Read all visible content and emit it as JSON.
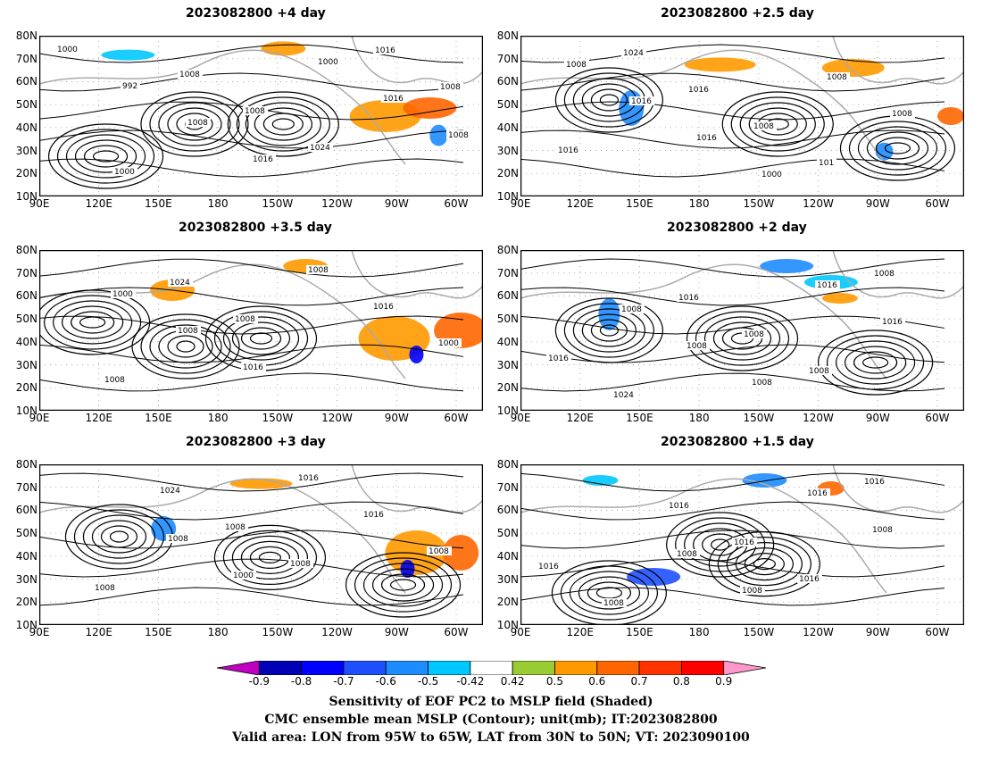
{
  "panels": [
    {
      "title": "2023082800  +4 day",
      "labels": [
        "1000",
        "992",
        "1008",
        "1016",
        "1000",
        "1016",
        "1008",
        "1000",
        "1008",
        "1008",
        "1024",
        "1016",
        "1008"
      ]
    },
    {
      "title": "2023082800  +2.5 day",
      "labels": [
        "1008",
        "1016",
        "1016",
        "1000",
        "1008",
        "1008",
        "1016",
        "1024",
        "1016",
        "1008",
        "101"
      ]
    },
    {
      "title": "2023082800  +3.5 day",
      "labels": [
        "1000",
        "1008",
        "1016",
        "1008",
        "1016",
        "1000",
        "1008",
        "1024",
        "1008"
      ]
    },
    {
      "title": "2023082800  +2 day",
      "labels": [
        "1008",
        "1008",
        "1008",
        "1016",
        "1016",
        "1016",
        "1024",
        "1016",
        "1008",
        "1008",
        "1008"
      ]
    },
    {
      "title": "2023082800  +3 day",
      "labels": [
        "1008",
        "1000",
        "1016",
        "1016",
        "1008",
        "1008",
        "1024",
        "1008",
        "1008"
      ]
    },
    {
      "title": "2023082800  +1.5 day",
      "labels": [
        "1008",
        "1008",
        "1016",
        "1008",
        "1016",
        "1008",
        "1016",
        "1016",
        "1016",
        "1016"
      ]
    }
  ],
  "axes": {
    "y_ticks": [
      "80N",
      "70N",
      "60N",
      "50N",
      "40N",
      "30N",
      "20N",
      "10N"
    ],
    "x_ticks": [
      "90E",
      "120E",
      "150E",
      "180",
      "150W",
      "120W",
      "90W",
      "60W"
    ]
  },
  "colorbar": {
    "labels": [
      "-0.9",
      "-0.8",
      "-0.7",
      "-0.6",
      "-0.5",
      "-0.42",
      "0.42",
      "0.5",
      "0.6",
      "0.7",
      "0.8",
      "0.9"
    ],
    "colors": [
      "#c000c0",
      "#0000b4",
      "#0000ff",
      "#1e50ff",
      "#1e8cff",
      "#00c8ff",
      "#ffffff",
      "#99cc33",
      "#ff9900",
      "#ff6600",
      "#ff3300",
      "#ff0000",
      "#ff99cc"
    ]
  },
  "caption": {
    "line1": "Sensitivity of EOF PC2 to MSLP field (Shaded)",
    "line2": "CMC ensemble mean MSLP (Contour); unit(mb); IT:2023082800",
    "line3": "Valid area: LON from 95W to 65W, LAT from 30N to 50N; VT: 2023090100"
  }
}
